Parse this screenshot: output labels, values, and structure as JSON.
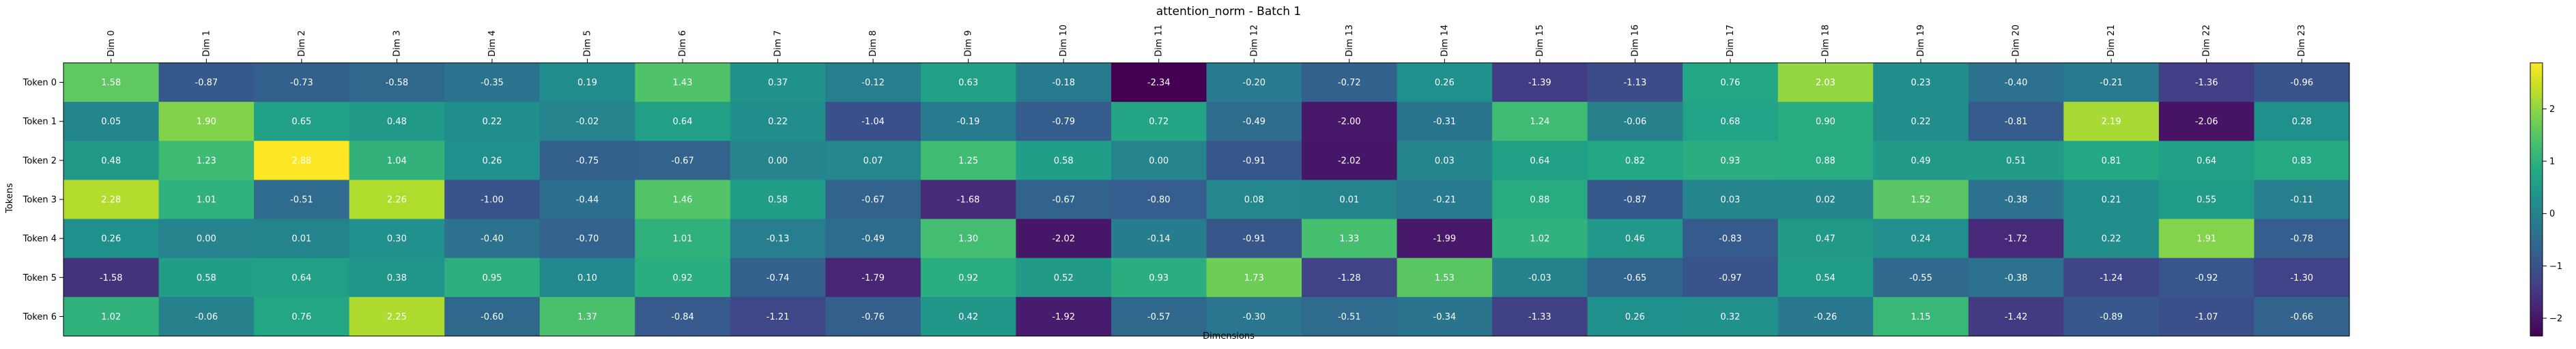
{
  "chart_data": {
    "type": "heatmap",
    "title": "attention_norm - Batch 1",
    "xlabel": "Dimensions",
    "ylabel": "Tokens",
    "x_categories": [
      "Dim 0",
      "Dim 1",
      "Dim 2",
      "Dim 3",
      "Dim 4",
      "Dim 5",
      "Dim 6",
      "Dim 7",
      "Dim 8",
      "Dim 9",
      "Dim 10",
      "Dim 11",
      "Dim 12",
      "Dim 13",
      "Dim 14",
      "Dim 15",
      "Dim 16",
      "Dim 17",
      "Dim 18",
      "Dim 19",
      "Dim 20",
      "Dim 21",
      "Dim 22",
      "Dim 23"
    ],
    "y_categories": [
      "Token 0",
      "Token 1",
      "Token 2",
      "Token 3",
      "Token 4",
      "Token 5",
      "Token 6"
    ],
    "values": [
      [
        1.58,
        -0.87,
        -0.73,
        -0.58,
        -0.35,
        0.19,
        1.43,
        0.37,
        -0.12,
        0.63,
        -0.18,
        -2.34,
        -0.2,
        -0.72,
        0.26,
        -1.39,
        -1.13,
        0.76,
        2.03,
        0.23,
        -0.4,
        -0.21,
        -1.36,
        -0.96
      ],
      [
        0.05,
        1.9,
        0.65,
        0.48,
        0.22,
        -0.02,
        0.64,
        0.22,
        -1.04,
        -0.19,
        -0.79,
        0.72,
        -0.49,
        -2.0,
        -0.31,
        1.24,
        -0.06,
        0.68,
        0.9,
        0.22,
        -0.81,
        2.19,
        -2.06,
        0.28
      ],
      [
        0.48,
        1.23,
        2.88,
        1.04,
        0.26,
        -0.75,
        -0.67,
        0.0,
        0.07,
        1.25,
        0.58,
        -0.0,
        -0.91,
        -2.02,
        0.03,
        0.64,
        0.82,
        0.93,
        0.88,
        0.49,
        0.51,
        0.81,
        0.64,
        0.83
      ],
      [
        2.28,
        1.01,
        -0.51,
        2.26,
        -1.0,
        -0.44,
        1.46,
        0.58,
        -0.67,
        -1.68,
        -0.67,
        -0.8,
        0.08,
        0.01,
        -0.21,
        0.88,
        -0.87,
        0.03,
        0.02,
        1.52,
        -0.38,
        0.21,
        0.55,
        -0.11
      ],
      [
        0.26,
        -0.0,
        0.01,
        0.3,
        -0.4,
        -0.7,
        1.01,
        -0.13,
        -0.49,
        1.3,
        -2.02,
        -0.14,
        -0.91,
        1.33,
        -1.99,
        1.02,
        0.46,
        -0.83,
        0.47,
        0.24,
        -1.72,
        0.22,
        1.91,
        -0.78
      ],
      [
        -1.58,
        0.58,
        0.64,
        0.38,
        0.95,
        0.1,
        0.92,
        -0.74,
        -1.79,
        0.92,
        0.52,
        0.93,
        1.73,
        -1.28,
        1.53,
        -0.03,
        -0.65,
        -0.97,
        0.54,
        -0.55,
        -0.38,
        -1.24,
        -0.92,
        -1.3
      ],
      [
        1.02,
        -0.06,
        0.76,
        2.25,
        -0.6,
        1.37,
        -0.84,
        -1.21,
        -0.76,
        0.42,
        -1.92,
        -0.57,
        -0.3,
        -0.51,
        -0.34,
        -1.33,
        0.26,
        0.32,
        -0.26,
        1.15,
        -1.42,
        -0.89,
        -1.07,
        -0.66
      ]
    ],
    "colormap": "viridis",
    "colorbar": {
      "vmin": -2.34,
      "vmax": 2.88,
      "ticks": [
        2,
        1,
        0,
        -1,
        -2
      ]
    },
    "cell_label_color": "#ffffff",
    "grid": false,
    "legend": "none"
  }
}
